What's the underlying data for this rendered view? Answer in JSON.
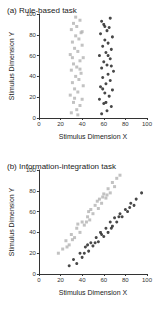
{
  "chart_data": [
    {
      "type": "scatter",
      "title": "(a) Rule-based task",
      "x_label": "Stimulus Dimension X",
      "y_label": "Stimulus Dimension Y",
      "xlim": [
        0,
        100
      ],
      "ylim": [
        0,
        100
      ],
      "xticks": [
        0,
        20,
        40,
        60,
        80,
        100
      ],
      "yticks": [
        0,
        20,
        40,
        60,
        80,
        100
      ],
      "grid": false,
      "series": [
        {
          "color": "#b3b3b3",
          "marker": "square",
          "values": [
            [
              30,
              5
            ],
            [
              35,
              8
            ],
            [
              38,
              12
            ],
            [
              32,
              15
            ],
            [
              40,
              18
            ],
            [
              29,
              22
            ],
            [
              36,
              25
            ],
            [
              33,
              28
            ],
            [
              41,
              31
            ],
            [
              31,
              34
            ],
            [
              37,
              37
            ],
            [
              34,
              40
            ],
            [
              39,
              43
            ],
            [
              30,
              46
            ],
            [
              35,
              49
            ],
            [
              32,
              52
            ],
            [
              38,
              55
            ],
            [
              41,
              58
            ],
            [
              29,
              61
            ],
            [
              36,
              64
            ],
            [
              33,
              67
            ],
            [
              40,
              70
            ],
            [
              31,
              73
            ],
            [
              37,
              76
            ],
            [
              34,
              79
            ],
            [
              39,
              82
            ],
            [
              30,
              85
            ],
            [
              35,
              88
            ],
            [
              32,
              91
            ],
            [
              38,
              94
            ],
            [
              36,
              3
            ],
            [
              33,
              19
            ],
            [
              38,
              47
            ],
            [
              31,
              58
            ],
            [
              40,
              83
            ],
            [
              34,
              97
            ]
          ]
        },
        {
          "color": "#1a1a1a",
          "marker": "circle",
          "values": [
            [
              58,
              4
            ],
            [
              63,
              7
            ],
            [
              67,
              11
            ],
            [
              60,
              14
            ],
            [
              56,
              18
            ],
            [
              65,
              21
            ],
            [
              61,
              24
            ],
            [
              68,
              27
            ],
            [
              57,
              30
            ],
            [
              62,
              33
            ],
            [
              66,
              36
            ],
            [
              59,
              39
            ],
            [
              64,
              42
            ],
            [
              69,
              45
            ],
            [
              58,
              48
            ],
            [
              63,
              51
            ],
            [
              60,
              54
            ],
            [
              66,
              57
            ],
            [
              56,
              60
            ],
            [
              62,
              63
            ],
            [
              67,
              66
            ],
            [
              59,
              69
            ],
            [
              64,
              72
            ],
            [
              61,
              75
            ],
            [
              68,
              78
            ],
            [
              57,
              81
            ],
            [
              63,
              84
            ],
            [
              65,
              87
            ],
            [
              60,
              90
            ],
            [
              58,
              93
            ],
            [
              66,
              96
            ],
            [
              62,
              15
            ],
            [
              59,
              28
            ],
            [
              64,
              60
            ],
            [
              67,
              50
            ],
            [
              61,
              88
            ]
          ]
        }
      ]
    },
    {
      "type": "scatter",
      "title": "(b) Information-integration task",
      "x_label": "Stimulus Dimension X",
      "y_label": "Stimulus Dimension Y",
      "xlim": [
        0,
        100
      ],
      "ylim": [
        0,
        100
      ],
      "xticks": [
        0,
        20,
        40,
        60,
        80,
        100
      ],
      "yticks": [
        0,
        20,
        40,
        60,
        80,
        100
      ],
      "grid": false,
      "series": [
        {
          "color": "#b3b3b3",
          "marker": "square",
          "values": [
            [
              18,
              20
            ],
            [
              22,
              24
            ],
            [
              25,
              32
            ],
            [
              28,
              28
            ],
            [
              30,
              38
            ],
            [
              33,
              35
            ],
            [
              35,
              44
            ],
            [
              38,
              40
            ],
            [
              40,
              50
            ],
            [
              42,
              47
            ],
            [
              45,
              55
            ],
            [
              47,
              52
            ],
            [
              48,
              62
            ],
            [
              50,
              58
            ],
            [
              52,
              66
            ],
            [
              55,
              63
            ],
            [
              56,
              72
            ],
            [
              58,
              68
            ],
            [
              60,
              77
            ],
            [
              62,
              73
            ],
            [
              64,
              82
            ],
            [
              66,
              78
            ],
            [
              68,
              88
            ],
            [
              70,
              84
            ],
            [
              72,
              92
            ],
            [
              75,
              95
            ],
            [
              26,
              26
            ],
            [
              36,
              48
            ],
            [
              44,
              50
            ],
            [
              54,
              70
            ],
            [
              63,
              76
            ],
            [
              46,
              60
            ],
            [
              31,
              33
            ],
            [
              59,
              74
            ]
          ]
        },
        {
          "color": "#1a1a1a",
          "marker": "circle",
          "values": [
            [
              28,
              8
            ],
            [
              32,
              14
            ],
            [
              35,
              10
            ],
            [
              38,
              20
            ],
            [
              40,
              16
            ],
            [
              43,
              26
            ],
            [
              46,
              22
            ],
            [
              48,
              30
            ],
            [
              50,
              27
            ],
            [
              53,
              35
            ],
            [
              55,
              31
            ],
            [
              57,
              40
            ],
            [
              60,
              36
            ],
            [
              62,
              44
            ],
            [
              64,
              40
            ],
            [
              66,
              50
            ],
            [
              68,
              46
            ],
            [
              70,
              54
            ],
            [
              72,
              50
            ],
            [
              75,
              58
            ],
            [
              77,
              55
            ],
            [
              80,
              62
            ],
            [
              82,
              60
            ],
            [
              85,
              68
            ],
            [
              88,
              66
            ],
            [
              90,
              72
            ],
            [
              95,
              78
            ],
            [
              42,
              20
            ],
            [
              52,
              30
            ],
            [
              58,
              38
            ],
            [
              67,
              44
            ],
            [
              74,
              55
            ],
            [
              84,
              64
            ],
            [
              45,
              28
            ]
          ]
        }
      ]
    }
  ]
}
